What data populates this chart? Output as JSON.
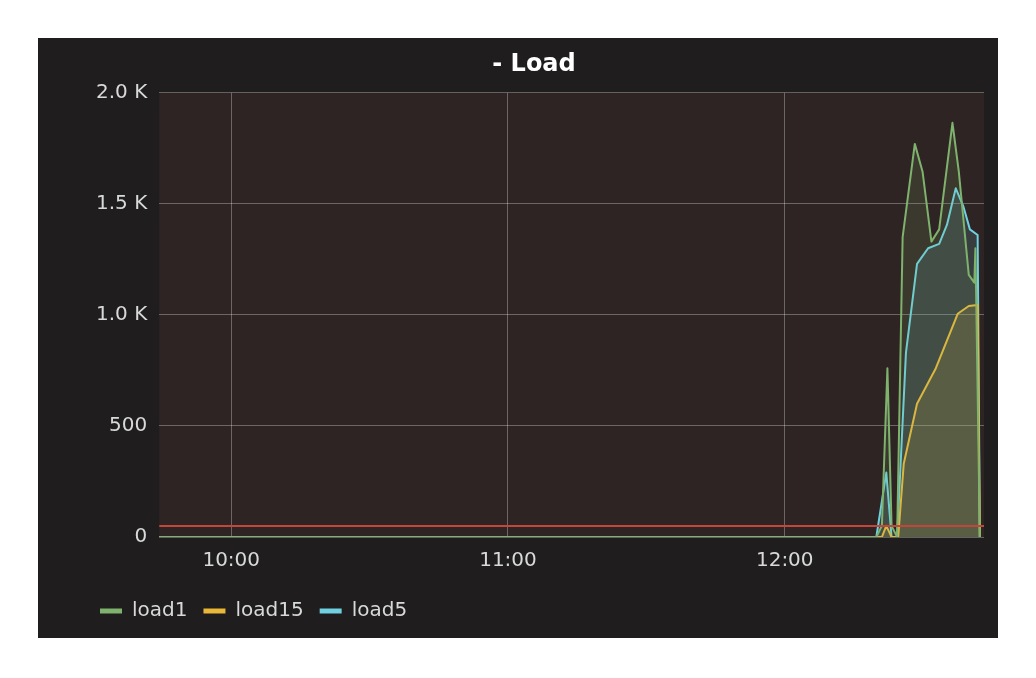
{
  "chart_data": {
    "type": "area",
    "title": "- Load",
    "x": [
      9.74,
      12.331,
      12.351,
      12.371,
      12.386,
      12.406,
      12.426,
      12.47,
      12.498,
      12.53,
      12.558,
      12.606,
      12.629,
      12.665,
      12.685,
      12.689,
      12.705
    ],
    "xlim": [
      9.74,
      12.72
    ],
    "xticks": [
      {
        "value": 10,
        "label": "10:00"
      },
      {
        "value": 11,
        "label": "11:00"
      },
      {
        "value": 12,
        "label": "12:00"
      }
    ],
    "ylim": [
      0,
      2000
    ],
    "yticks": [
      {
        "value": 0,
        "label": "0"
      },
      {
        "value": 500,
        "label": "500"
      },
      {
        "value": 1000,
        "label": "1.0 K"
      },
      {
        "value": 1500,
        "label": "1.5 K"
      },
      {
        "value": 2000,
        "label": "2.0 K"
      }
    ],
    "series": [
      {
        "name": "load1",
        "color": "#7eb26d",
        "values": [
          0,
          0,
          50,
          760,
          50,
          0,
          1350,
          1770,
          1645,
          1330,
          1385,
          1865,
          1645,
          1180,
          1145,
          1300,
          0
        ]
      },
      {
        "name": "load15",
        "color": "#eab839",
        "x": [
          9.74,
          12.351,
          12.367,
          12.386,
          12.41,
          12.43,
          12.478,
          12.546,
          12.625,
          12.665,
          12.697,
          12.705
        ],
        "values": [
          0,
          0,
          50,
          0,
          0,
          330,
          600,
          760,
          1005,
          1040,
          1045,
          0
        ]
      },
      {
        "name": "load5",
        "color": "#6ed0e0",
        "x": [
          9.74,
          12.331,
          12.367,
          12.386,
          12.406,
          12.438,
          12.478,
          12.518,
          12.558,
          12.586,
          12.618,
          12.645,
          12.669,
          12.697,
          12.705
        ],
        "values": [
          0,
          0,
          290,
          0,
          0,
          830,
          1230,
          1300,
          1320,
          1405,
          1570,
          1490,
          1385,
          1360,
          0
        ]
      }
    ],
    "ref_lines": [
      {
        "axis": "y",
        "value": 50,
        "color": "#c4463a"
      }
    ],
    "grid": true,
    "legend": "bottom left",
    "marker": "none",
    "line_style": "solid"
  }
}
